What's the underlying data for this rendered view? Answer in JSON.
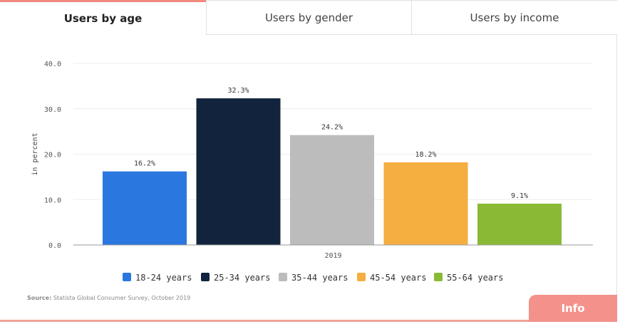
{
  "tabs": {
    "age": "Users by age",
    "gender": "Users by gender",
    "income": "Users by income"
  },
  "source": {
    "label": "Source:",
    "text": "Statista Global Consumer Survey, October 2019"
  },
  "info_button": "Info",
  "chart_data": {
    "type": "bar",
    "title": "",
    "xlabel": "",
    "ylabel": "in percent",
    "ylim": [
      0,
      40
    ],
    "yticks": [
      "0.0",
      "10.0",
      "20.0",
      "30.0",
      "40.0"
    ],
    "categories": [
      "2019"
    ],
    "series": [
      {
        "name": "18-24 years",
        "values": [
          16.2
        ],
        "label": "16.2%",
        "color": "#2a77e0"
      },
      {
        "name": "25-34 years",
        "values": [
          32.3
        ],
        "label": "32.3%",
        "color": "#12243d"
      },
      {
        "name": "35-44 years",
        "values": [
          24.2
        ],
        "label": "24.2%",
        "color": "#bcbcbc"
      },
      {
        "name": "45-54 years",
        "values": [
          18.2
        ],
        "label": "18.2%",
        "color": "#f5ae40"
      },
      {
        "name": "55-64 years",
        "values": [
          9.1
        ],
        "label": "9.1%",
        "color": "#8aba35"
      }
    ],
    "grid": true,
    "legend": "bottom"
  }
}
